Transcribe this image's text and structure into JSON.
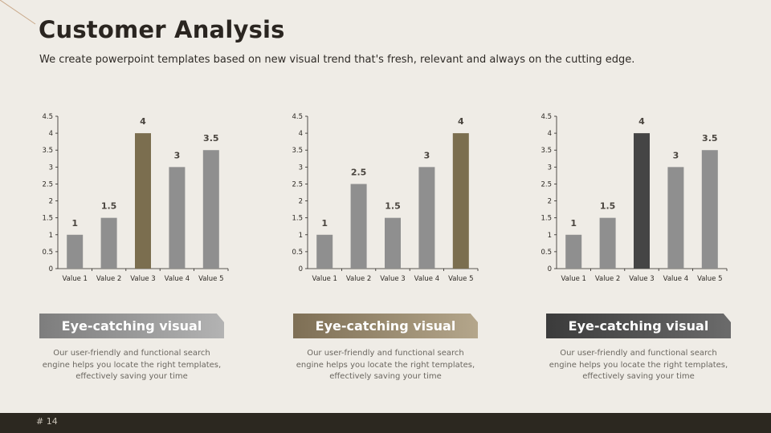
{
  "header": {
    "title": "Customer Analysis",
    "subtitle": "We create powerpoint templates based on new visual trend that's fresh, relevant and always on the cutting edge."
  },
  "chart_data": [
    {
      "type": "bar",
      "categories": [
        "Value 1",
        "Value 2",
        "Value 3",
        "Value 4",
        "Value 5"
      ],
      "values": [
        1,
        1.5,
        4,
        3,
        3.5
      ],
      "highlight_index": 2,
      "highlight_color": "#7b6e4f",
      "bar_color": "#8f8f8f",
      "ylim": [
        0,
        4.5
      ],
      "yticks": [
        "0",
        "0.5",
        "1",
        "1.5",
        "2",
        "2.5",
        "3",
        "3.5",
        "4",
        "4.5"
      ],
      "data_labels": [
        "1",
        "1.5",
        "4",
        "3",
        "3.5"
      ],
      "grid": false
    },
    {
      "type": "bar",
      "categories": [
        "Value 1",
        "Value 2",
        "Value 3",
        "Value 4",
        "Value 5"
      ],
      "values": [
        1,
        2.5,
        1.5,
        3,
        4
      ],
      "highlight_index": 4,
      "highlight_color": "#7b6e4f",
      "bar_color": "#8f8f8f",
      "ylim": [
        0,
        4.5
      ],
      "yticks": [
        "0",
        "0.5",
        "1",
        "1.5",
        "2",
        "2.5",
        "3",
        "3.5",
        "4",
        "4.5"
      ],
      "data_labels": [
        "1",
        "2.5",
        "1.5",
        "3",
        "4"
      ],
      "grid": false
    },
    {
      "type": "bar",
      "categories": [
        "Value 1",
        "Value 2",
        "Value 3",
        "Value 4",
        "Value 5"
      ],
      "values": [
        1,
        1.5,
        4,
        3,
        3.5
      ],
      "highlight_index": 2,
      "highlight_color": "#454545",
      "bar_color": "#8f8f8f",
      "ylim": [
        0,
        4.5
      ],
      "yticks": [
        "0",
        "0.5",
        "1",
        "1.5",
        "2",
        "2.5",
        "3",
        "3.5",
        "4",
        "4.5"
      ],
      "data_labels": [
        "1",
        "1.5",
        "4",
        "3",
        "3.5"
      ],
      "grid": false
    }
  ],
  "cards": [
    {
      "title": "Eye-catching visual",
      "text": "Our user-friendly and functional search engine helps you locate the right templates, effectively saving your time"
    },
    {
      "title": "Eye-catching visual",
      "text": "Our user-friendly and functional search engine helps you locate the right templates, effectively saving your time"
    },
    {
      "title": "Eye-catching visual",
      "text": "Our user-friendly and functional search engine helps you locate the right templates, effectively saving your time"
    }
  ],
  "footer": {
    "page_number": "# 14"
  }
}
